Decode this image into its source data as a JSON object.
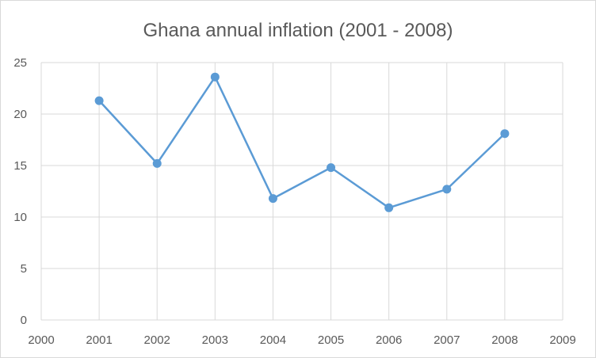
{
  "chart_data": {
    "type": "scatter",
    "title": "Ghana annual inflation (2001 - 2008)",
    "xlabel": "",
    "ylabel": "",
    "xlim": [
      2000,
      2009
    ],
    "ylim": [
      0,
      25
    ],
    "x_ticks": [
      2000,
      2001,
      2002,
      2003,
      2004,
      2005,
      2006,
      2007,
      2008,
      2009
    ],
    "y_ticks": [
      0,
      5,
      10,
      15,
      20,
      25
    ],
    "grid": true,
    "legend": "none",
    "line_connected": true,
    "series": [
      {
        "color": "#5b9bd5",
        "points": [
          {
            "x": 2001,
            "y": 21.3
          },
          {
            "x": 2002,
            "y": 15.2
          },
          {
            "x": 2003,
            "y": 23.6
          },
          {
            "x": 2004,
            "y": 11.8
          },
          {
            "x": 2005,
            "y": 14.8
          },
          {
            "x": 2006,
            "y": 10.9
          },
          {
            "x": 2007,
            "y": 12.7
          },
          {
            "x": 2008,
            "y": 18.1
          }
        ]
      }
    ],
    "colors": {
      "gridline": "#d9d9d9",
      "text": "#595959"
    }
  }
}
